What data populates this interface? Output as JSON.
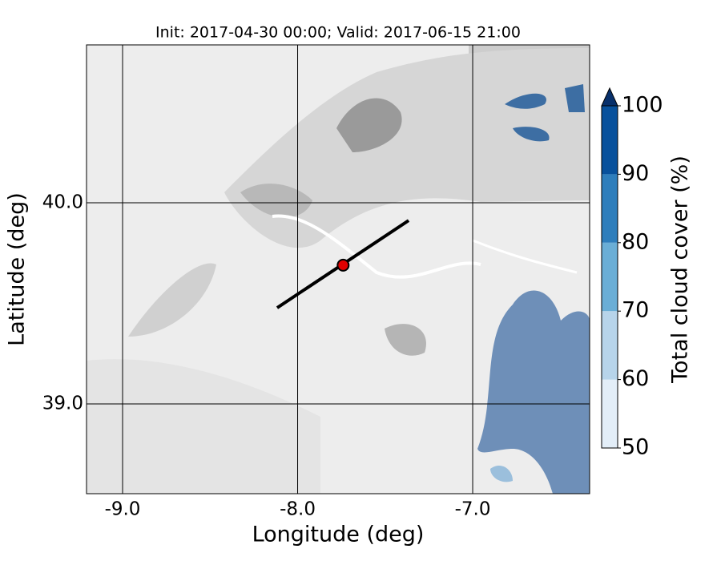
{
  "chart_data": {
    "type": "map",
    "title": "Init: 2017-04-30 00:00; Valid: 2017-06-15 21:00",
    "x_label": "Longitude (deg)",
    "y_label": "Latitude (deg)",
    "xlim": [
      -9.206,
      -6.332
    ],
    "ylim": [
      38.554,
      40.785
    ],
    "xticks": [
      {
        "value": -9,
        "label": "-9.0"
      },
      {
        "value": -8,
        "label": "-8.0"
      },
      {
        "value": -7,
        "label": "-7.0"
      }
    ],
    "yticks": [
      {
        "value": 39,
        "label": "39.0"
      },
      {
        "value": 40,
        "label": "40.0"
      }
    ],
    "grid": true,
    "point": {
      "lon": -7.74,
      "lat": 39.69,
      "color": "#e00000"
    },
    "line": {
      "lon": [
        -8.117,
        -7.366
      ],
      "lat": [
        39.478,
        39.912
      ],
      "color": "#000000"
    },
    "colorbar": {
      "label": "Total cloud cover (%)",
      "lim": [
        50,
        100
      ],
      "ticks": [
        50,
        60,
        70,
        80,
        90,
        100
      ],
      "colors": [
        "#e3eef8",
        "#b7d4ea",
        "#6aaed6",
        "#2e7ebc",
        "#08519c"
      ],
      "extend_color": "#08306b"
    }
  }
}
